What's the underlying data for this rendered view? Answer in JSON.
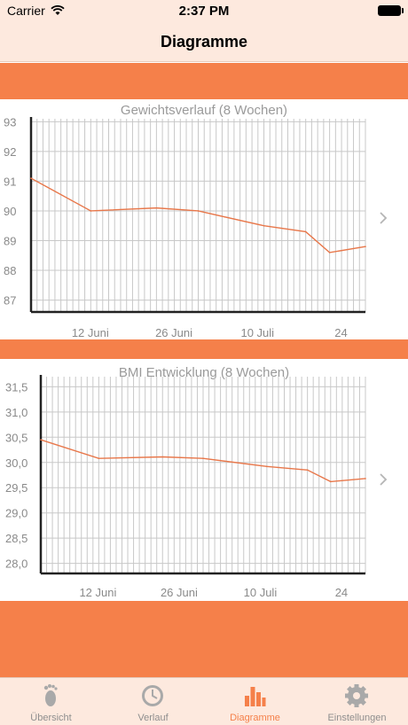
{
  "status": {
    "carrier": "Carrier",
    "time": "2:37 PM"
  },
  "header": {
    "title": "Diagramme"
  },
  "colors": {
    "accent": "#f5804a",
    "bar_bg": "#fde9de",
    "line": "#e8774a",
    "grid": "#c8c8c8"
  },
  "chart_data": [
    {
      "type": "line",
      "title": "Gewichtsverlauf (8 Wochen)",
      "ylim": [
        86.6,
        93.1
      ],
      "xlim": [
        0,
        56
      ],
      "y_ticks": [
        "93",
        "92",
        "91",
        "90",
        "89",
        "88",
        "87"
      ],
      "x_ticks": [
        {
          "label": "12 Juni",
          "day": 12
        },
        {
          "label": "26 Juni",
          "day": 26
        },
        {
          "label": "10 Juli",
          "day": 40
        },
        {
          "label": "24",
          "day": 54
        }
      ],
      "x": [
        0,
        10,
        21,
        28,
        39,
        46,
        50,
        56
      ],
      "values": [
        91.1,
        90.0,
        90.1,
        90.0,
        89.5,
        89.3,
        88.6,
        88.8
      ],
      "grid": true
    },
    {
      "type": "line",
      "title": "BMI Entwicklung (8 Wochen)",
      "ylim": [
        27.8,
        31.7
      ],
      "xlim": [
        0,
        56
      ],
      "y_ticks": [
        "31,5",
        "31,0",
        "30,5",
        "30,0",
        "29,5",
        "29,0",
        "28,5",
        "28,0"
      ],
      "x_ticks": [
        {
          "label": "12 Juni",
          "day": 12
        },
        {
          "label": "26 Juni",
          "day": 26
        },
        {
          "label": "10 Juli",
          "day": 40
        },
        {
          "label": "24",
          "day": 54
        }
      ],
      "x": [
        0,
        10,
        21,
        28,
        39,
        46,
        50,
        56
      ],
      "values": [
        30.45,
        30.08,
        30.11,
        30.08,
        29.92,
        29.85,
        29.62,
        29.68
      ],
      "grid": true
    }
  ],
  "tabs": [
    {
      "label": "Übersicht",
      "icon": "footprint-icon",
      "active": false
    },
    {
      "label": "Verlauf",
      "icon": "clock-icon",
      "active": false
    },
    {
      "label": "Diagramme",
      "icon": "bar-chart-icon",
      "active": true
    },
    {
      "label": "Einstellungen",
      "icon": "gear-icon",
      "active": false
    }
  ]
}
